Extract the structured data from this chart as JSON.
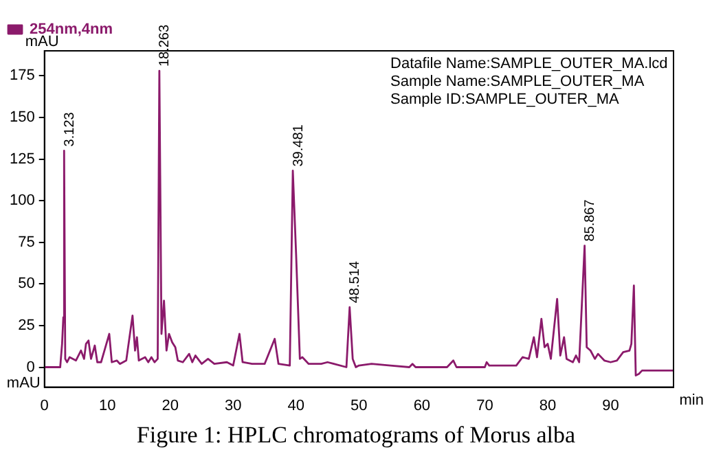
{
  "chart_data": {
    "type": "line",
    "title": "Figure 1:  HPLC chromatograms of Morus alba",
    "xlabel": "min",
    "ylabel": "mAU",
    "xlim": [
      0,
      100
    ],
    "xticks": [
      0,
      10,
      20,
      30,
      40,
      50,
      60,
      70,
      80,
      90
    ],
    "ylim": [
      -12,
      190
    ],
    "yticks": [
      0,
      25,
      50,
      75,
      100,
      125,
      150,
      175
    ],
    "grid": false,
    "legend": "top left",
    "marker": "none",
    "line_style": "solid",
    "series": [
      {
        "name": "254nm,4nm",
        "color": "#8b1a6b",
        "x": [
          0,
          2.5,
          2.8,
          3.0,
          3.123,
          3.3,
          3.6,
          4,
          5,
          5.8,
          6.3,
          6.6,
          7,
          7.4,
          8,
          8.4,
          9,
          10.3,
          10.7,
          11.5,
          12,
          13,
          14,
          14.4,
          14.7,
          15,
          16,
          16.5,
          17,
          17.5,
          18,
          18.263,
          18.6,
          19,
          19.4,
          19.8,
          20.3,
          20.8,
          21.2,
          22,
          23,
          23.5,
          24,
          25,
          26,
          27,
          29,
          30,
          31,
          31.5,
          33,
          35,
          36.6,
          37.2,
          39,
          39.481,
          40,
          40.6,
          41,
          42,
          44,
          45,
          46,
          48,
          48.514,
          49,
          49.5,
          50,
          52,
          55,
          58,
          58.5,
          59,
          64,
          65,
          65.5,
          70,
          70.3,
          70.7,
          75,
          76,
          77,
          77.8,
          78.3,
          79,
          79.5,
          80,
          80.5,
          81.5,
          82,
          82.6,
          83,
          84,
          84.5,
          85,
          85.867,
          86.2,
          86.8,
          87.5,
          88,
          89,
          90,
          91,
          92,
          93,
          93.3,
          93.7,
          94,
          94.5,
          95,
          100
        ],
        "values": [
          0,
          0,
          14,
          30,
          130,
          5,
          3,
          6,
          4,
          10,
          5,
          14,
          16,
          5,
          13,
          3,
          3,
          20,
          3,
          4,
          2,
          4,
          31,
          10,
          18,
          4,
          6,
          3,
          6,
          3,
          5,
          178,
          20,
          40,
          10,
          20,
          15,
          12,
          4,
          3,
          8,
          3,
          7,
          2,
          5,
          2,
          3,
          1,
          20,
          3,
          2,
          2,
          17,
          2,
          1,
          118,
          68,
          5,
          6,
          2,
          2,
          3,
          2,
          0,
          36,
          5,
          0,
          1,
          2,
          1,
          0,
          2,
          0,
          0,
          4,
          0,
          0,
          3,
          1,
          1,
          6,
          5,
          18,
          6,
          29,
          12,
          14,
          5,
          41,
          7,
          18,
          5,
          3,
          7,
          3,
          73,
          12,
          10,
          5,
          8,
          4,
          3,
          4,
          9,
          10,
          14,
          49,
          -5,
          -4,
          -2,
          -2
        ]
      }
    ],
    "annotations": [
      {
        "text": "3.123",
        "x": 3.123,
        "y": 130
      },
      {
        "text": "18.263",
        "x": 18.263,
        "y": 178
      },
      {
        "text": "39.481",
        "x": 39.481,
        "y": 118
      },
      {
        "text": "48.514",
        "x": 48.514,
        "y": 36
      },
      {
        "text": "85.867",
        "x": 85.867,
        "y": 73
      },
      "Datafile Name:SAMPLE_OUTER_MA.lcd",
      "Sample Name:SAMPLE_OUTER_MA",
      "Sample ID:SAMPLE_OUTER_MA",
      "mAU"
    ]
  }
}
